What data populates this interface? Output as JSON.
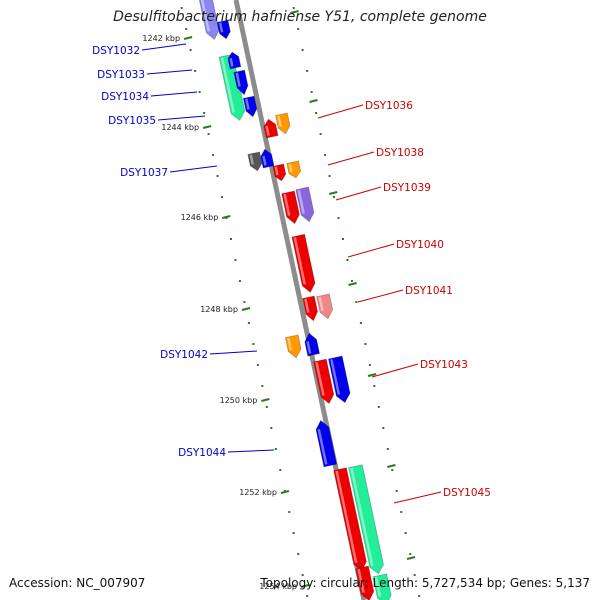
{
  "title": "Desulfitobacterium hafniense Y51, complete genome",
  "accession": "Accession: NC_007907",
  "summary": "Topology: circular; Length: 5,727,534 bp; Genes: 5,137",
  "colors": {
    "backbone": "#8c8c8c",
    "tick": "#2a7a1e",
    "left_label": "#0000cc",
    "right_label": "#cc0000",
    "red": "#ee0000",
    "orange": "#ff9900",
    "blue": "#0000ee",
    "purple": "#8866dd",
    "pink": "#ee8888",
    "green": "#22ee99",
    "gray": "#555555",
    "light_blue": "#8888ee"
  },
  "ticks": [
    {
      "label": "1242 kbp"
    },
    {
      "label": "1244 kbp"
    },
    {
      "label": "1246 kbp"
    },
    {
      "label": "1248 kbp"
    },
    {
      "label": "1250 kbp"
    },
    {
      "label": "1252 kbp"
    },
    {
      "label": "1254 kbp"
    }
  ],
  "left_labels": [
    {
      "label": "DSY1032"
    },
    {
      "label": "DSY1033"
    },
    {
      "label": "DSY1034"
    },
    {
      "label": "DSY1035"
    },
    {
      "label": "DSY1037"
    },
    {
      "label": "DSY1042"
    },
    {
      "label": "DSY1044"
    }
  ],
  "right_labels": [
    {
      "label": "DSY1036"
    },
    {
      "label": "DSY1038"
    },
    {
      "label": "DSY1039"
    },
    {
      "label": "DSY1040"
    },
    {
      "label": "DSY1041"
    },
    {
      "label": "DSY1043"
    },
    {
      "label": "DSY1045"
    }
  ]
}
